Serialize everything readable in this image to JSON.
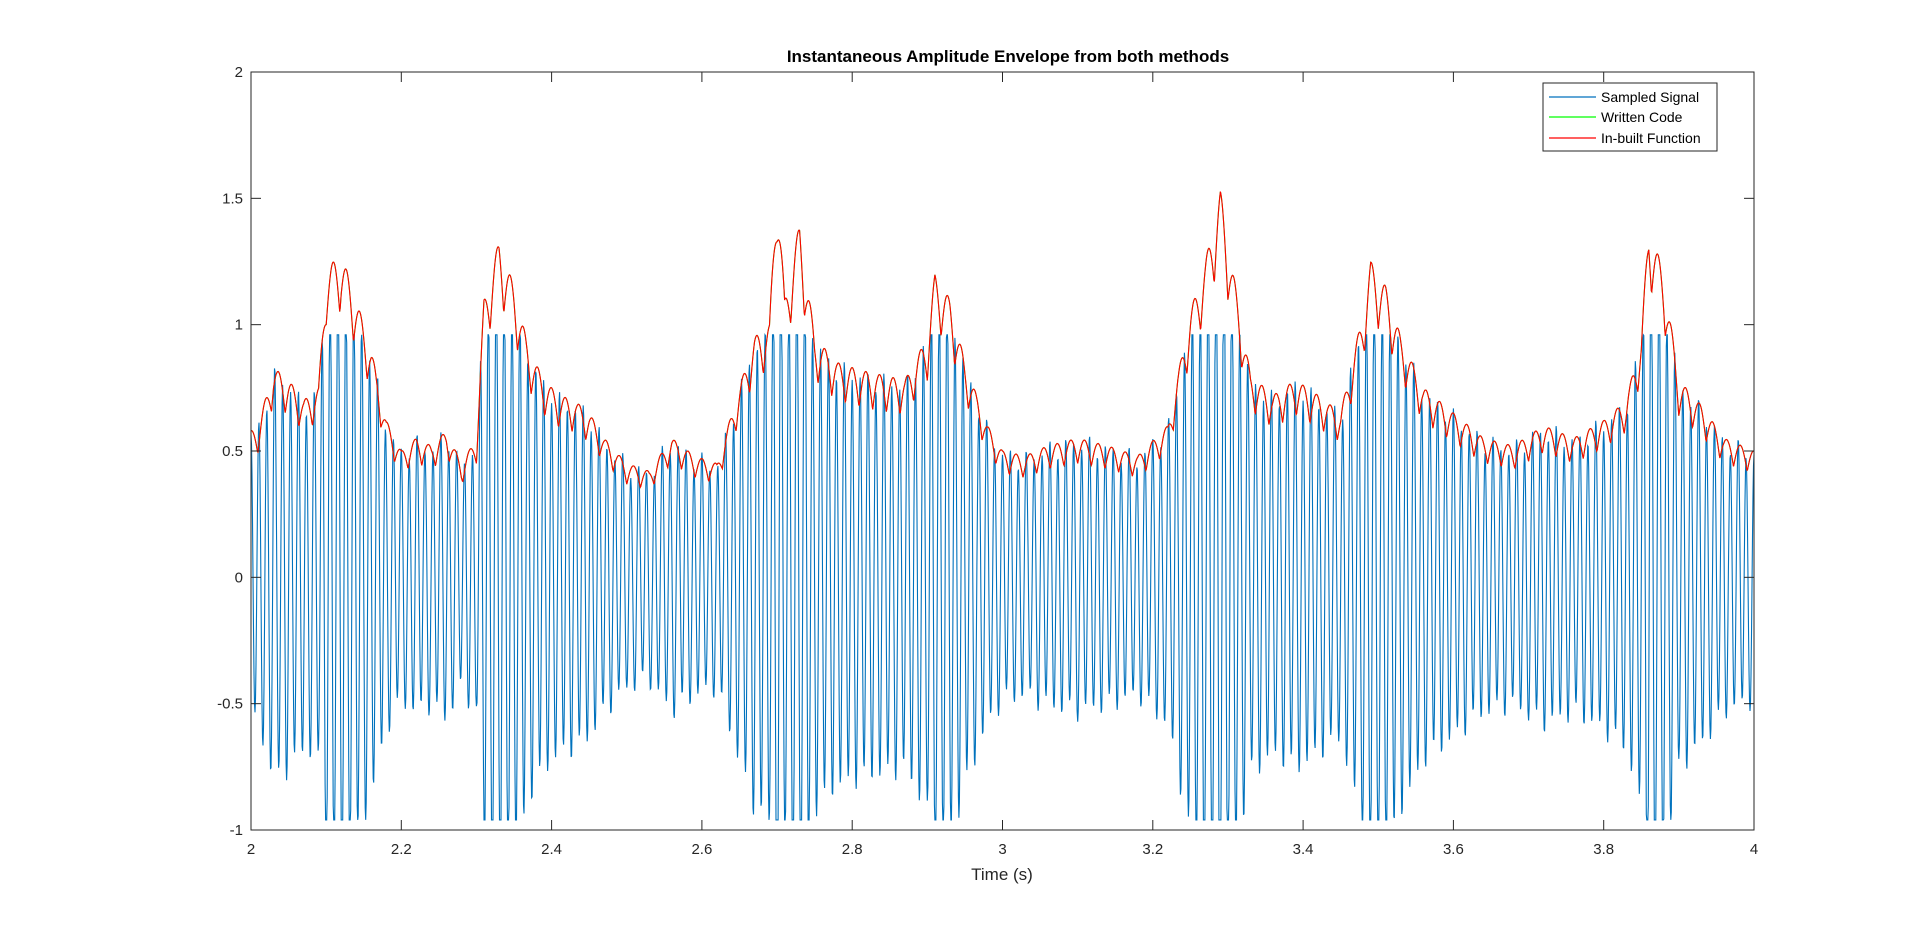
{
  "chart_data": {
    "type": "line",
    "title": "Instantaneous Amplitude Envelope from both methods",
    "xlabel": "Time (s)",
    "ylabel": "",
    "xlim": [
      2,
      4
    ],
    "ylim": [
      -1,
      2
    ],
    "xticks": [
      "2",
      "2.2",
      "2.4",
      "2.6",
      "2.8",
      "3",
      "3.2",
      "3.4",
      "3.6",
      "3.8",
      "4"
    ],
    "yticks": [
      "-1",
      "-0.5",
      "0",
      "0.5",
      "1",
      "1.5",
      "2"
    ],
    "grid": false,
    "legend_position": "top-right",
    "carrier_freq_hz": 95,
    "series": [
      {
        "name": "Sampled Signal",
        "color": "#0072BD",
        "note": "oscillating signal clipped near +/-0.96; shown as carrier modulated by the envelope below"
      },
      {
        "name": "Written Code",
        "color": "#00FF00"
      },
      {
        "name": "In-built Function",
        "color": "#FF0000",
        "x": [
          2.0,
          2.01,
          2.03,
          2.05,
          2.07,
          2.09,
          2.1,
          2.12,
          2.14,
          2.16,
          2.18,
          2.2,
          2.22,
          2.24,
          2.26,
          2.28,
          2.3,
          2.31,
          2.33,
          2.35,
          2.37,
          2.39,
          2.41,
          2.43,
          2.45,
          2.47,
          2.5,
          2.53,
          2.56,
          2.59,
          2.62,
          2.65,
          2.67,
          2.69,
          2.7,
          2.71,
          2.73,
          2.75,
          2.78,
          2.81,
          2.84,
          2.87,
          2.9,
          2.91,
          2.93,
          2.95,
          2.98,
          3.0,
          3.03,
          3.06,
          3.1,
          3.14,
          3.18,
          3.22,
          3.25,
          3.27,
          3.29,
          3.31,
          3.33,
          3.36,
          3.39,
          3.42,
          3.45,
          3.48,
          3.49,
          3.51,
          3.53,
          3.56,
          3.6,
          3.64,
          3.68,
          3.72,
          3.76,
          3.8,
          3.83,
          3.85,
          3.86,
          3.88,
          3.9,
          3.93,
          3.96,
          4.0
        ],
        "y": [
          0.58,
          0.6,
          0.83,
          0.78,
          0.7,
          0.75,
          1.22,
          1.28,
          1.1,
          0.9,
          0.62,
          0.5,
          0.55,
          0.52,
          0.58,
          0.45,
          0.55,
          1.1,
          1.33,
          1.15,
          0.9,
          0.78,
          0.72,
          0.7,
          0.65,
          0.55,
          0.45,
          0.42,
          0.55,
          0.48,
          0.45,
          0.75,
          0.95,
          1.0,
          1.62,
          1.1,
          1.4,
          0.95,
          0.85,
          0.82,
          0.8,
          0.78,
          0.95,
          1.2,
          1.1,
          0.85,
          0.6,
          0.5,
          0.48,
          0.52,
          0.55,
          0.52,
          0.48,
          0.6,
          1.05,
          1.25,
          1.53,
          1.15,
          0.8,
          0.72,
          0.78,
          0.72,
          0.65,
          1.05,
          1.25,
          1.15,
          0.95,
          0.75,
          0.65,
          0.55,
          0.52,
          0.6,
          0.55,
          0.62,
          0.7,
          0.95,
          1.4,
          1.2,
          0.78,
          0.68,
          0.55,
          0.5
        ]
      }
    ]
  }
}
